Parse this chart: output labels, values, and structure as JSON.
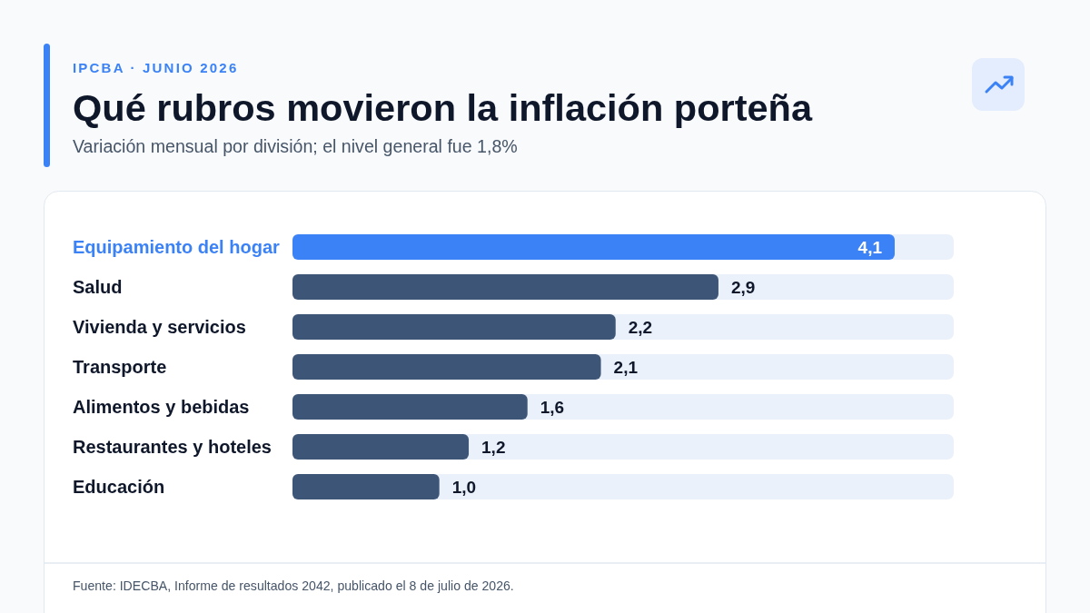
{
  "chart_data": {
    "type": "bar",
    "orientation": "horizontal",
    "title": "Qué rubros movieron la inflación porteña",
    "subtitle": "Variación mensual por división; el nivel general fue 1,8%",
    "annotations": [
      "IPCBA · JUNIO 2026",
      "Fuente: IDECBA, Informe de resultados 2042, publicado el 8 de julio de 2026."
    ],
    "categories": [
      "Equipamiento del hogar",
      "Salud",
      "Vivienda y servicios",
      "Transporte",
      "Alimentos y bebidas",
      "Restaurantes y hoteles",
      "Educación"
    ],
    "values": [
      4.1,
      2.9,
      2.2,
      2.1,
      1.6,
      1.2,
      1.0
    ],
    "colors": [
      "#3b82f6",
      "#3d5577",
      "#3d5577",
      "#3d5577",
      "#3d5577",
      "#3d5577",
      "#3d5577"
    ],
    "value_labels": [
      "4,1",
      "2,9",
      "2,2",
      "2,1",
      "1,6",
      "1,2",
      "1,0"
    ],
    "tick_labels": "y"
  }
}
